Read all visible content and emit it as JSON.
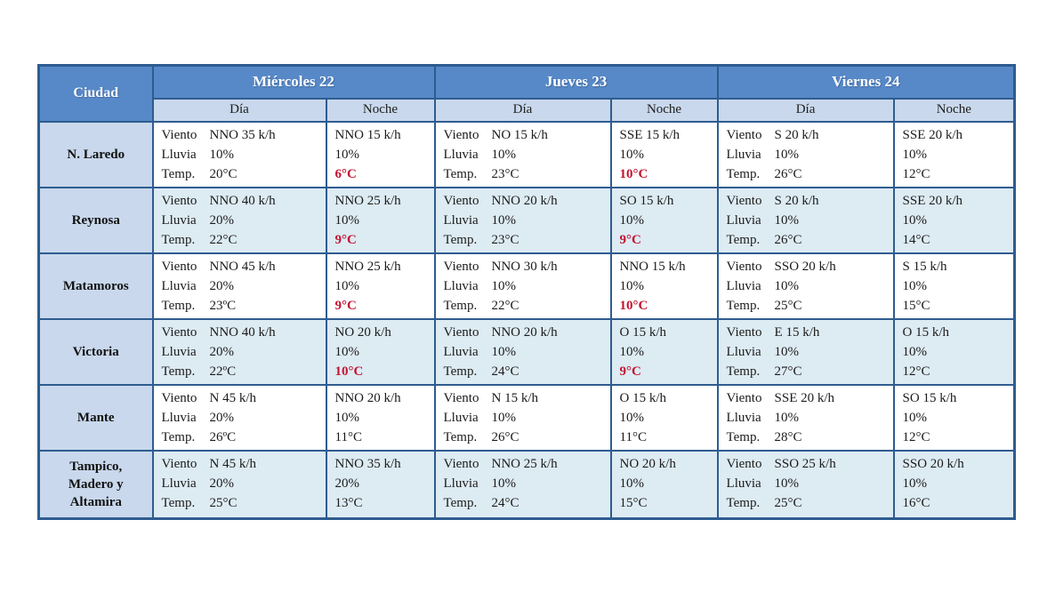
{
  "table": {
    "header": {
      "city_column_label": "Ciudad",
      "day_groups": [
        "Miércoles 22",
        "Jueves 23",
        "Viernes 24"
      ],
      "sub_columns": [
        "Día",
        "Noche"
      ]
    },
    "line_labels": {
      "viento": "Viento",
      "lluvia": "Lluvia",
      "temp": "Temp."
    },
    "rows": [
      {
        "city": "N. Laredo",
        "cells": [
          {
            "viento": "NNO 35 k/h",
            "lluvia": "10%",
            "temp": "20°C",
            "temp_red": false
          },
          {
            "viento": "NNO 15 k/h",
            "lluvia": "10%",
            "temp": "6°C",
            "temp_red": true
          },
          {
            "viento": "NO 15 k/h",
            "lluvia": "10%",
            "temp": "23°C",
            "temp_red": false
          },
          {
            "viento": "SSE 15 k/h",
            "lluvia": "10%",
            "temp": "10°C",
            "temp_red": true
          },
          {
            "viento": "S 20 k/h",
            "lluvia": "10%",
            "temp": "26°C",
            "temp_red": false
          },
          {
            "viento": "SSE 20 k/h",
            "lluvia": "10%",
            "temp": "12°C",
            "temp_red": false
          }
        ]
      },
      {
        "city": "Reynosa",
        "cells": [
          {
            "viento": "NNO 40 k/h",
            "lluvia": "20%",
            "temp": "22°C",
            "temp_red": false
          },
          {
            "viento": "NNO 25 k/h",
            "lluvia": "10%",
            "temp": "9°C",
            "temp_red": true
          },
          {
            "viento": "NNO 20 k/h",
            "lluvia": "10%",
            "temp": "23°C",
            "temp_red": false
          },
          {
            "viento": "SO 15 k/h",
            "lluvia": "10%",
            "temp": "9°C",
            "temp_red": true
          },
          {
            "viento": "S 20 k/h",
            "lluvia": "10%",
            "temp": "26°C",
            "temp_red": false
          },
          {
            "viento": "SSE 20 k/h",
            "lluvia": "10%",
            "temp": "14°C",
            "temp_red": false
          }
        ]
      },
      {
        "city": "Matamoros",
        "cells": [
          {
            "viento": "NNO 45 k/h",
            "lluvia": "20%",
            "temp": "23ºC",
            "temp_red": false
          },
          {
            "viento": "NNO 25 k/h",
            "lluvia": "10%",
            "temp": "9°C",
            "temp_red": true
          },
          {
            "viento": "NNO 30 k/h",
            "lluvia": "10%",
            "temp": "22°C",
            "temp_red": false
          },
          {
            "viento": "NNO 15 k/h",
            "lluvia": "10%",
            "temp": "10°C",
            "temp_red": true
          },
          {
            "viento": "SSO 20 k/h",
            "lluvia": "10%",
            "temp": "25°C",
            "temp_red": false
          },
          {
            "viento": "S 15 k/h",
            "lluvia": "10%",
            "temp": "15°C",
            "temp_red": false
          }
        ]
      },
      {
        "city": "Victoria",
        "cells": [
          {
            "viento": "NNO 40 k/h",
            "lluvia": "20%",
            "temp": "22ºC",
            "temp_red": false
          },
          {
            "viento": "NO 20 k/h",
            "lluvia": "10%",
            "temp": "10°C",
            "temp_red": true
          },
          {
            "viento": "NNO 20 k/h",
            "lluvia": "10%",
            "temp": "24°C",
            "temp_red": false
          },
          {
            "viento": "O 15 k/h",
            "lluvia": "10%",
            "temp": "9°C",
            "temp_red": true
          },
          {
            "viento": "E 15 k/h",
            "lluvia": "10%",
            "temp": "27°C",
            "temp_red": false
          },
          {
            "viento": "O 15 k/h",
            "lluvia": "10%",
            "temp": "12°C",
            "temp_red": false
          }
        ]
      },
      {
        "city": "Mante",
        "cells": [
          {
            "viento": "N 45 k/h",
            "lluvia": "20%",
            "temp": "26ºC",
            "temp_red": false
          },
          {
            "viento": "NNO 20 k/h",
            "lluvia": "10%",
            "temp": "11°C",
            "temp_red": false
          },
          {
            "viento": "N 15 k/h",
            "lluvia": "10%",
            "temp": "26°C",
            "temp_red": false
          },
          {
            "viento": "O 15 k/h",
            "lluvia": "10%",
            "temp": "11°C",
            "temp_red": false
          },
          {
            "viento": "SSE 20 k/h",
            "lluvia": "10%",
            "temp": "28°C",
            "temp_red": false
          },
          {
            "viento": "SO 15 k/h",
            "lluvia": "10%",
            "temp": "12°C",
            "temp_red": false
          }
        ]
      },
      {
        "city": "Tampico, Madero y Altamira",
        "cells": [
          {
            "viento": "N 45 k/h",
            "lluvia": "20%",
            "temp": "25°C",
            "temp_red": false
          },
          {
            "viento": "NNO 35 k/h",
            "lluvia": "20%",
            "temp": "13°C",
            "temp_red": false
          },
          {
            "viento": "NNO 25 k/h",
            "lluvia": "10%",
            "temp": "24°C",
            "temp_red": false
          },
          {
            "viento": "NO 20 k/h",
            "lluvia": "10%",
            "temp": "15°C",
            "temp_red": false
          },
          {
            "viento": "SSO 25 k/h",
            "lluvia": "10%",
            "temp": "25°C",
            "temp_red": false
          },
          {
            "viento": "SSO 20 k/h",
            "lluvia": "10%",
            "temp": "16°C",
            "temp_red": false
          }
        ]
      }
    ]
  },
  "colors": {
    "header_blue": "#5789C8",
    "subheader_blue": "#C9D8EC",
    "row_stripe_blue": "#DDEBF3",
    "border_blue": "#2E5C90",
    "alert_red": "#C41230",
    "header_text": "#FFFFFF",
    "body_text": "#1B1B1B"
  }
}
